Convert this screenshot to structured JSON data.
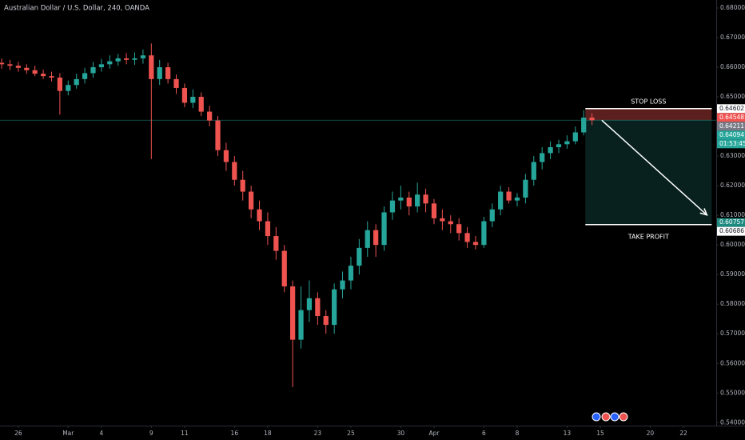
{
  "chart_data": {
    "type": "candlestick",
    "title": "Australian Dollar / U.S. Dollar, 240, OANDA",
    "x": [
      -1,
      -0.5,
      0,
      0.5,
      1,
      1.5,
      2,
      2.5,
      3,
      3.5,
      4,
      4.5,
      5,
      5.5,
      6,
      6.5,
      7,
      7.5,
      8,
      8.5,
      9,
      9.5,
      10,
      10.5,
      11,
      11.5,
      12,
      12.5,
      13,
      13.5,
      14,
      14.5,
      15,
      15.5,
      16,
      16.5,
      17,
      17.5,
      18,
      18.5,
      19,
      19.5,
      20,
      20.5,
      21,
      21.5,
      22,
      22.5,
      23,
      23.5,
      24,
      24.5,
      25,
      25.5,
      26,
      26.5,
      27,
      27.5,
      28,
      28.5,
      29,
      29.5,
      30,
      30.5,
      31,
      31.5,
      32,
      32.5,
      33,
      33.5,
      34,
      34.5
    ],
    "open": [
      0.6615,
      0.661,
      0.6605,
      0.6598,
      0.659,
      0.6578,
      0.657,
      0.6565,
      0.652,
      0.654,
      0.656,
      0.658,
      0.66,
      0.661,
      0.662,
      0.663,
      0.6625,
      0.663,
      0.664,
      0.656,
      0.66,
      0.656,
      0.653,
      0.648,
      0.65,
      0.645,
      0.642,
      0.632,
      0.628,
      0.622,
      0.618,
      0.612,
      0.608,
      0.603,
      0.598,
      0.586,
      0.568,
      0.578,
      0.582,
      0.576,
      0.573,
      0.585,
      0.588,
      0.593,
      0.599,
      0.605,
      0.6,
      0.611,
      0.615,
      0.616,
      0.613,
      0.617,
      0.614,
      0.609,
      0.608,
      0.607,
      0.604,
      0.601,
      0.6,
      0.608,
      0.612,
      0.618,
      0.615,
      0.616,
      0.622,
      0.628,
      0.631,
      0.633,
      0.634,
      0.635,
      0.638,
      0.643
    ],
    "high": [
      0.663,
      0.6625,
      0.6618,
      0.661,
      0.6605,
      0.6592,
      0.6585,
      0.658,
      0.6555,
      0.6578,
      0.6598,
      0.6618,
      0.6628,
      0.664,
      0.6645,
      0.6648,
      0.665,
      0.666,
      0.668,
      0.6625,
      0.6615,
      0.6575,
      0.6545,
      0.6525,
      0.6515,
      0.647,
      0.6435,
      0.6345,
      0.63,
      0.625,
      0.62,
      0.615,
      0.611,
      0.606,
      0.6,
      0.588,
      0.586,
      0.588,
      0.584,
      0.578,
      0.587,
      0.591,
      0.596,
      0.602,
      0.608,
      0.607,
      0.613,
      0.618,
      0.62,
      0.618,
      0.621,
      0.619,
      0.6155,
      0.612,
      0.61,
      0.609,
      0.606,
      0.603,
      0.6095,
      0.614,
      0.62,
      0.6195,
      0.6175,
      0.624,
      0.63,
      0.633,
      0.635,
      0.6355,
      0.637,
      0.64,
      0.6455,
      0.6445
    ],
    "low": [
      0.6595,
      0.659,
      0.6585,
      0.6578,
      0.657,
      0.656,
      0.6552,
      0.644,
      0.6505,
      0.6528,
      0.6545,
      0.6565,
      0.6585,
      0.6595,
      0.6605,
      0.661,
      0.6608,
      0.6612,
      0.629,
      0.654,
      0.6545,
      0.651,
      0.6465,
      0.6462,
      0.6435,
      0.64,
      0.63,
      0.625,
      0.62,
      0.615,
      0.609,
      0.605,
      0.6,
      0.595,
      0.584,
      0.552,
      0.565,
      0.574,
      0.573,
      0.57,
      0.57,
      0.582,
      0.585,
      0.59,
      0.596,
      0.596,
      0.598,
      0.6085,
      0.612,
      0.61,
      0.611,
      0.611,
      0.607,
      0.605,
      0.604,
      0.6015,
      0.599,
      0.5985,
      0.599,
      0.606,
      0.61,
      0.614,
      0.613,
      0.614,
      0.62,
      0.6255,
      0.629,
      0.631,
      0.6325,
      0.634,
      0.637,
      0.6405
    ],
    "close": [
      0.661,
      0.6605,
      0.6598,
      0.659,
      0.6578,
      0.657,
      0.6565,
      0.652,
      0.654,
      0.656,
      0.658,
      0.66,
      0.661,
      0.662,
      0.663,
      0.6625,
      0.663,
      0.664,
      0.656,
      0.66,
      0.656,
      0.653,
      0.648,
      0.65,
      0.645,
      0.642,
      0.632,
      0.628,
      0.622,
      0.618,
      0.612,
      0.608,
      0.603,
      0.598,
      0.586,
      0.568,
      0.578,
      0.582,
      0.576,
      0.573,
      0.585,
      0.588,
      0.593,
      0.599,
      0.605,
      0.6,
      0.611,
      0.615,
      0.616,
      0.613,
      0.617,
      0.614,
      0.609,
      0.608,
      0.607,
      0.604,
      0.601,
      0.6,
      0.608,
      0.612,
      0.618,
      0.615,
      0.616,
      0.622,
      0.628,
      0.631,
      0.633,
      0.634,
      0.635,
      0.638,
      0.643,
      0.6421
    ],
    "up_color": "#26a69a",
    "down_color": "#ef5350",
    "xlim": [
      -1.1,
      41.97
    ],
    "xticks": [
      {
        "value": 0,
        "label": "26"
      },
      {
        "value": 3,
        "label": "Mar"
      },
      {
        "value": 5,
        "label": "4"
      },
      {
        "value": 8,
        "label": "9"
      },
      {
        "value": 10,
        "label": "11"
      },
      {
        "value": 13,
        "label": "16"
      },
      {
        "value": 15,
        "label": "18"
      },
      {
        "value": 18,
        "label": "23"
      },
      {
        "value": 20,
        "label": "25"
      },
      {
        "value": 23,
        "label": "30"
      },
      {
        "value": 25,
        "label": "Apr"
      },
      {
        "value": 28,
        "label": "6"
      },
      {
        "value": 30,
        "label": "8"
      },
      {
        "value": 33,
        "label": "13"
      },
      {
        "value": 35,
        "label": "15"
      },
      {
        "value": 38,
        "label": "20"
      },
      {
        "value": 40,
        "label": "22"
      }
    ],
    "ylim": [
      0.539,
      0.6827
    ],
    "yticks": [
      {
        "value": 0.54,
        "label": "0.54000"
      },
      {
        "value": 0.55,
        "label": "0.55000"
      },
      {
        "value": 0.56,
        "label": "0.56000"
      },
      {
        "value": 0.57,
        "label": "0.57000"
      },
      {
        "value": 0.58,
        "label": "0.58000"
      },
      {
        "value": 0.59,
        "label": "0.59000"
      },
      {
        "value": 0.6,
        "label": "0.60000"
      },
      {
        "value": 0.61,
        "label": "0.61000"
      },
      {
        "value": 0.62,
        "label": "0.62000"
      },
      {
        "value": 0.63,
        "label": "0.63000"
      },
      {
        "value": 0.64,
        "label": "0.64000"
      },
      {
        "value": 0.65,
        "label": "0.65000"
      },
      {
        "value": 0.66,
        "label": "0.66000"
      },
      {
        "value": 0.67,
        "label": "0.67000"
      },
      {
        "value": 0.68,
        "label": "0.68000"
      }
    ],
    "current_price": 0.64211,
    "position": {
      "start_x": 34.1,
      "end_x": 41.7,
      "stop_loss": 0.64602,
      "entry": 0.64211,
      "take_profit": 0.60686,
      "stop_label": "STOP LOSS",
      "target_label": "TAKE PROFIT",
      "stop_color": "rgba(239,83,80,0.38)",
      "target_color": "rgba(38,166,154,0.2)"
    },
    "price_labels": [
      {
        "value": 0.64602,
        "label": "0.64602",
        "color": "#ffffff",
        "text_color": "#131722"
      },
      {
        "value": 0.64548,
        "label": "0.64548",
        "color": "#ef5350",
        "text_color": "#ffffff"
      },
      {
        "value": 0.64211,
        "label": "0.64211",
        "color": "#787b86",
        "text_color": "#ffffff"
      },
      {
        "value": 0.64094,
        "label": "0.64094",
        "color": "#26a69a",
        "text_color": "#ffffff"
      },
      {
        "label": "01:53:45",
        "color": "#26a69a",
        "text_color": "#ffffff"
      },
      {
        "value": 0.60757,
        "label": "0.60757",
        "color": "#1e8a80",
        "text_color": "#ffffff"
      },
      {
        "value": 0.60686,
        "label": "0.60686",
        "color": "#ffffff",
        "text_color": "#131722"
      }
    ]
  }
}
